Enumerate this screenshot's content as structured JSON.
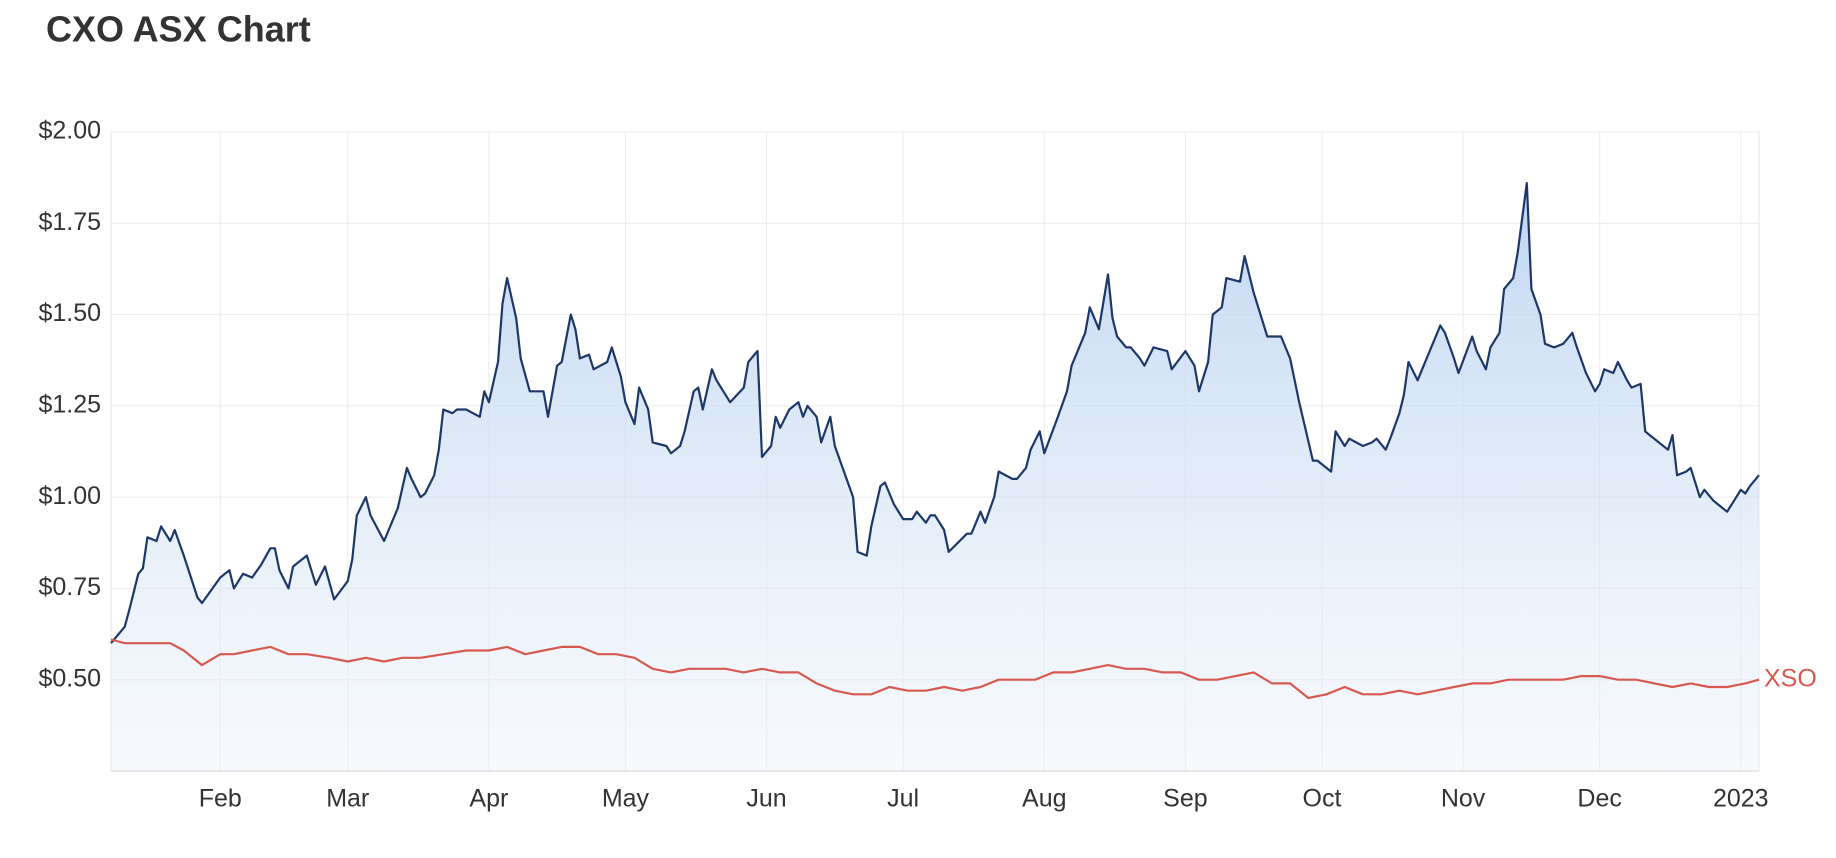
{
  "chart_data": {
    "type": "line",
    "title": "CXO ASX Chart",
    "xlim": [
      7,
      369
    ],
    "xticks": [
      {
        "value": 31,
        "label": "Feb"
      },
      {
        "value": 59,
        "label": "Mar"
      },
      {
        "value": 90,
        "label": "Apr"
      },
      {
        "value": 120,
        "label": "May"
      },
      {
        "value": 151,
        "label": "Jun"
      },
      {
        "value": 181,
        "label": "Jul"
      },
      {
        "value": 212,
        "label": "Aug"
      },
      {
        "value": 243,
        "label": "Sep"
      },
      {
        "value": 273,
        "label": "Oct"
      },
      {
        "value": 304,
        "label": "Nov"
      },
      {
        "value": 334,
        "label": "Dec"
      },
      {
        "value": 365,
        "label": "2023"
      }
    ],
    "ylim": [
      0.25,
      2.0
    ],
    "yticks": [
      {
        "value": 0.5,
        "label": "$0.50"
      },
      {
        "value": 0.75,
        "label": "$0.75"
      },
      {
        "value": 1.0,
        "label": "$1.00"
      },
      {
        "value": 1.25,
        "label": "$1.25"
      },
      {
        "value": 1.5,
        "label": "$1.50"
      },
      {
        "value": 1.75,
        "label": "$1.75"
      },
      {
        "value": 2.0,
        "label": "$2.00"
      }
    ],
    "grid": true,
    "series": [
      {
        "color": "#1d3868",
        "area": true,
        "x": [
          7,
          10,
          11,
          13,
          14,
          15,
          17,
          18,
          20,
          21,
          23,
          26,
          27,
          31,
          33,
          34,
          36,
          38,
          40,
          42,
          43,
          44,
          46,
          47,
          50,
          52,
          54,
          56,
          59,
          60,
          61,
          63,
          64,
          67,
          70,
          72,
          73,
          75,
          76,
          78,
          79,
          80,
          82,
          83,
          85,
          88,
          89,
          90,
          92,
          93,
          94,
          96,
          97,
          99,
          102,
          103,
          105,
          106,
          108,
          109,
          110,
          112,
          113,
          116,
          117,
          119,
          120,
          122,
          123,
          125,
          126,
          129,
          130,
          132,
          133,
          135,
          136,
          137,
          139,
          140,
          142,
          143,
          146,
          147,
          149,
          150,
          152,
          153,
          154,
          156,
          158,
          159,
          160,
          162,
          163,
          165,
          166,
          170,
          171,
          173,
          174,
          176,
          177,
          179,
          181,
          183,
          184,
          186,
          187,
          188,
          190,
          191,
          195,
          196,
          198,
          199,
          201,
          202,
          205,
          206,
          208,
          209,
          211,
          212,
          215,
          217,
          218,
          221,
          222,
          224,
          226,
          227,
          228,
          230,
          231,
          233,
          234,
          236,
          239,
          240,
          243,
          245,
          246,
          248,
          249,
          251,
          252,
          255,
          256,
          258,
          261,
          262,
          264,
          266,
          268,
          271,
          272,
          275,
          276,
          278,
          279,
          282,
          284,
          285,
          287,
          288,
          290,
          291,
          292,
          294,
          297,
          299,
          300,
          302,
          303,
          306,
          307,
          309,
          310,
          312,
          313,
          315,
          316,
          318,
          319,
          321,
          322,
          324,
          326,
          328,
          329,
          331,
          333,
          334,
          335,
          337,
          338,
          340,
          341,
          343,
          344,
          345,
          347,
          349,
          350,
          351,
          353,
          354,
          356,
          357,
          359,
          360,
          362,
          363,
          365,
          366,
          367,
          369
        ],
        "values": [
          0.6,
          0.645,
          0.69,
          0.79,
          0.805,
          0.89,
          0.88,
          0.92,
          0.88,
          0.91,
          0.84,
          0.725,
          0.71,
          0.78,
          0.8,
          0.75,
          0.79,
          0.78,
          0.815,
          0.86,
          0.86,
          0.8,
          0.75,
          0.81,
          0.84,
          0.76,
          0.81,
          0.72,
          0.77,
          0.83,
          0.95,
          1.0,
          0.95,
          0.88,
          0.97,
          1.08,
          1.05,
          1.0,
          1.01,
          1.06,
          1.13,
          1.24,
          1.23,
          1.24,
          1.24,
          1.22,
          1.29,
          1.26,
          1.37,
          1.53,
          1.6,
          1.49,
          1.38,
          1.29,
          1.29,
          1.22,
          1.36,
          1.37,
          1.5,
          1.46,
          1.38,
          1.39,
          1.35,
          1.37,
          1.41,
          1.33,
          1.26,
          1.2,
          1.3,
          1.24,
          1.15,
          1.14,
          1.12,
          1.14,
          1.18,
          1.29,
          1.3,
          1.24,
          1.35,
          1.32,
          1.28,
          1.26,
          1.3,
          1.37,
          1.4,
          1.11,
          1.14,
          1.22,
          1.19,
          1.24,
          1.26,
          1.22,
          1.25,
          1.22,
          1.15,
          1.22,
          1.14,
          1.0,
          0.85,
          0.84,
          0.92,
          1.03,
          1.04,
          0.98,
          0.94,
          0.94,
          0.96,
          0.93,
          0.95,
          0.95,
          0.91,
          0.85,
          0.9,
          0.9,
          0.96,
          0.93,
          1.0,
          1.07,
          1.05,
          1.05,
          1.08,
          1.13,
          1.18,
          1.12,
          1.22,
          1.29,
          1.36,
          1.45,
          1.52,
          1.46,
          1.61,
          1.49,
          1.44,
          1.41,
          1.41,
          1.38,
          1.36,
          1.41,
          1.4,
          1.35,
          1.4,
          1.36,
          1.29,
          1.37,
          1.5,
          1.52,
          1.6,
          1.59,
          1.66,
          1.56,
          1.44,
          1.44,
          1.44,
          1.38,
          1.26,
          1.1,
          1.1,
          1.07,
          1.18,
          1.14,
          1.16,
          1.14,
          1.15,
          1.16,
          1.13,
          1.16,
          1.23,
          1.28,
          1.37,
          1.32,
          1.41,
          1.47,
          1.45,
          1.38,
          1.34,
          1.44,
          1.4,
          1.35,
          1.41,
          1.45,
          1.57,
          1.6,
          1.67,
          1.86,
          1.57,
          1.5,
          1.42,
          1.41,
          1.42,
          1.45,
          1.41,
          1.34,
          1.29,
          1.31,
          1.35,
          1.34,
          1.37,
          1.32,
          1.3,
          1.31,
          1.18,
          1.17,
          1.15,
          1.13,
          1.17,
          1.06,
          1.07,
          1.08,
          1.0,
          1.02,
          0.99,
          0.98,
          0.96,
          0.98,
          1.02,
          1.01,
          1.03,
          1.06
        ]
      },
      {
        "name": "XSO",
        "color": "#d65a4f",
        "area": false,
        "x": [
          7,
          10,
          13,
          17,
          20,
          23,
          27,
          31,
          34,
          38,
          42,
          46,
          50,
          55,
          59,
          63,
          67,
          71,
          75,
          80,
          85,
          90,
          94,
          98,
          102,
          106,
          110,
          114,
          118,
          122,
          126,
          130,
          134,
          138,
          142,
          146,
          150,
          154,
          158,
          162,
          166,
          170,
          174,
          178,
          182,
          186,
          190,
          194,
          198,
          202,
          206,
          210,
          214,
          218,
          222,
          226,
          230,
          234,
          238,
          242,
          246,
          250,
          254,
          258,
          262,
          266,
          270,
          274,
          278,
          282,
          286,
          290,
          294,
          298,
          302,
          306,
          310,
          314,
          318,
          322,
          326,
          330,
          334,
          338,
          342,
          346,
          350,
          354,
          358,
          362,
          366,
          369
        ],
        "values": [
          0.61,
          0.6,
          0.6,
          0.6,
          0.6,
          0.58,
          0.54,
          0.57,
          0.57,
          0.58,
          0.59,
          0.57,
          0.57,
          0.56,
          0.55,
          0.56,
          0.55,
          0.56,
          0.56,
          0.57,
          0.58,
          0.58,
          0.59,
          0.57,
          0.58,
          0.59,
          0.59,
          0.57,
          0.57,
          0.56,
          0.53,
          0.52,
          0.53,
          0.53,
          0.53,
          0.52,
          0.53,
          0.52,
          0.52,
          0.49,
          0.47,
          0.46,
          0.46,
          0.48,
          0.47,
          0.47,
          0.48,
          0.47,
          0.48,
          0.5,
          0.5,
          0.5,
          0.52,
          0.52,
          0.53,
          0.54,
          0.53,
          0.53,
          0.52,
          0.52,
          0.5,
          0.5,
          0.51,
          0.52,
          0.49,
          0.49,
          0.45,
          0.46,
          0.48,
          0.46,
          0.46,
          0.47,
          0.46,
          0.47,
          0.48,
          0.49,
          0.49,
          0.5,
          0.5,
          0.5,
          0.5,
          0.51,
          0.51,
          0.5,
          0.5,
          0.49,
          0.48,
          0.49,
          0.48,
          0.48,
          0.49,
          0.5
        ]
      }
    ]
  }
}
